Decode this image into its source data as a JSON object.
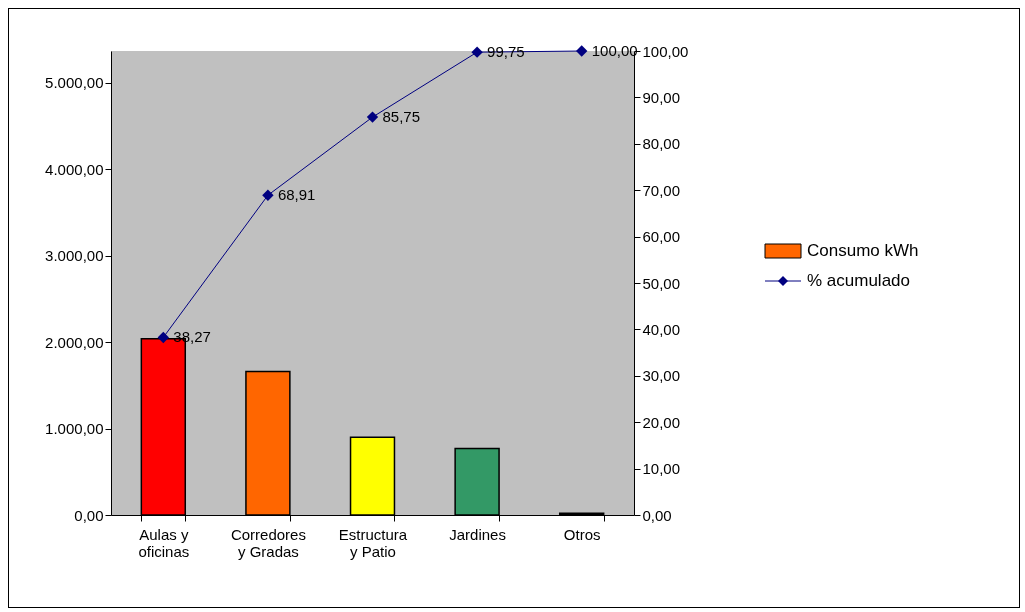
{
  "chart_data": {
    "type": "bar",
    "categories": [
      "Aulas y\noficinas",
      "Corredores\ny Gradas",
      "Estructura\ny Patio",
      "Jardines",
      "Otros"
    ],
    "series": [
      {
        "name": "Consumo kWh",
        "color": "#ff6600",
        "colors": [
          "#ff0000",
          "#ff6600",
          "#ffff00",
          "#339966",
          "#000000"
        ],
        "values": [
          2040,
          1660,
          900,
          770,
          20
        ]
      },
      {
        "name": "% acumulado",
        "type": "line",
        "axis": "y2",
        "color": "#000080",
        "values": [
          38.27,
          68.91,
          85.75,
          99.75,
          100
        ],
        "value_labels": [
          "38,27",
          "68,91",
          "85,75",
          "99,75",
          "100,00"
        ]
      }
    ],
    "ylim": [
      0,
      5370
    ],
    "yticks": [
      {
        "value": 0,
        "label": "0,00"
      },
      {
        "value": 1000,
        "label": "1.000,00"
      },
      {
        "value": 2000,
        "label": "2.000,00"
      },
      {
        "value": 3000,
        "label": "3.000,00"
      },
      {
        "value": 4000,
        "label": "4.000,00"
      },
      {
        "value": 5000,
        "label": "5.000,00"
      }
    ],
    "y2lim": [
      0,
      100
    ],
    "y2ticks": [
      {
        "value": 0,
        "label": "0,00"
      },
      {
        "value": 10,
        "label": "10,00"
      },
      {
        "value": 20,
        "label": "20,00"
      },
      {
        "value": 30,
        "label": "30,00"
      },
      {
        "value": 40,
        "label": "40,00"
      },
      {
        "value": 50,
        "label": "50,00"
      },
      {
        "value": 60,
        "label": "60,00"
      },
      {
        "value": 70,
        "label": "70,00"
      },
      {
        "value": 80,
        "label": "80,00"
      },
      {
        "value": 90,
        "label": "90,00"
      },
      {
        "value": 100,
        "label": "100,00"
      }
    ],
    "legend": "right",
    "marker": "diamond"
  }
}
